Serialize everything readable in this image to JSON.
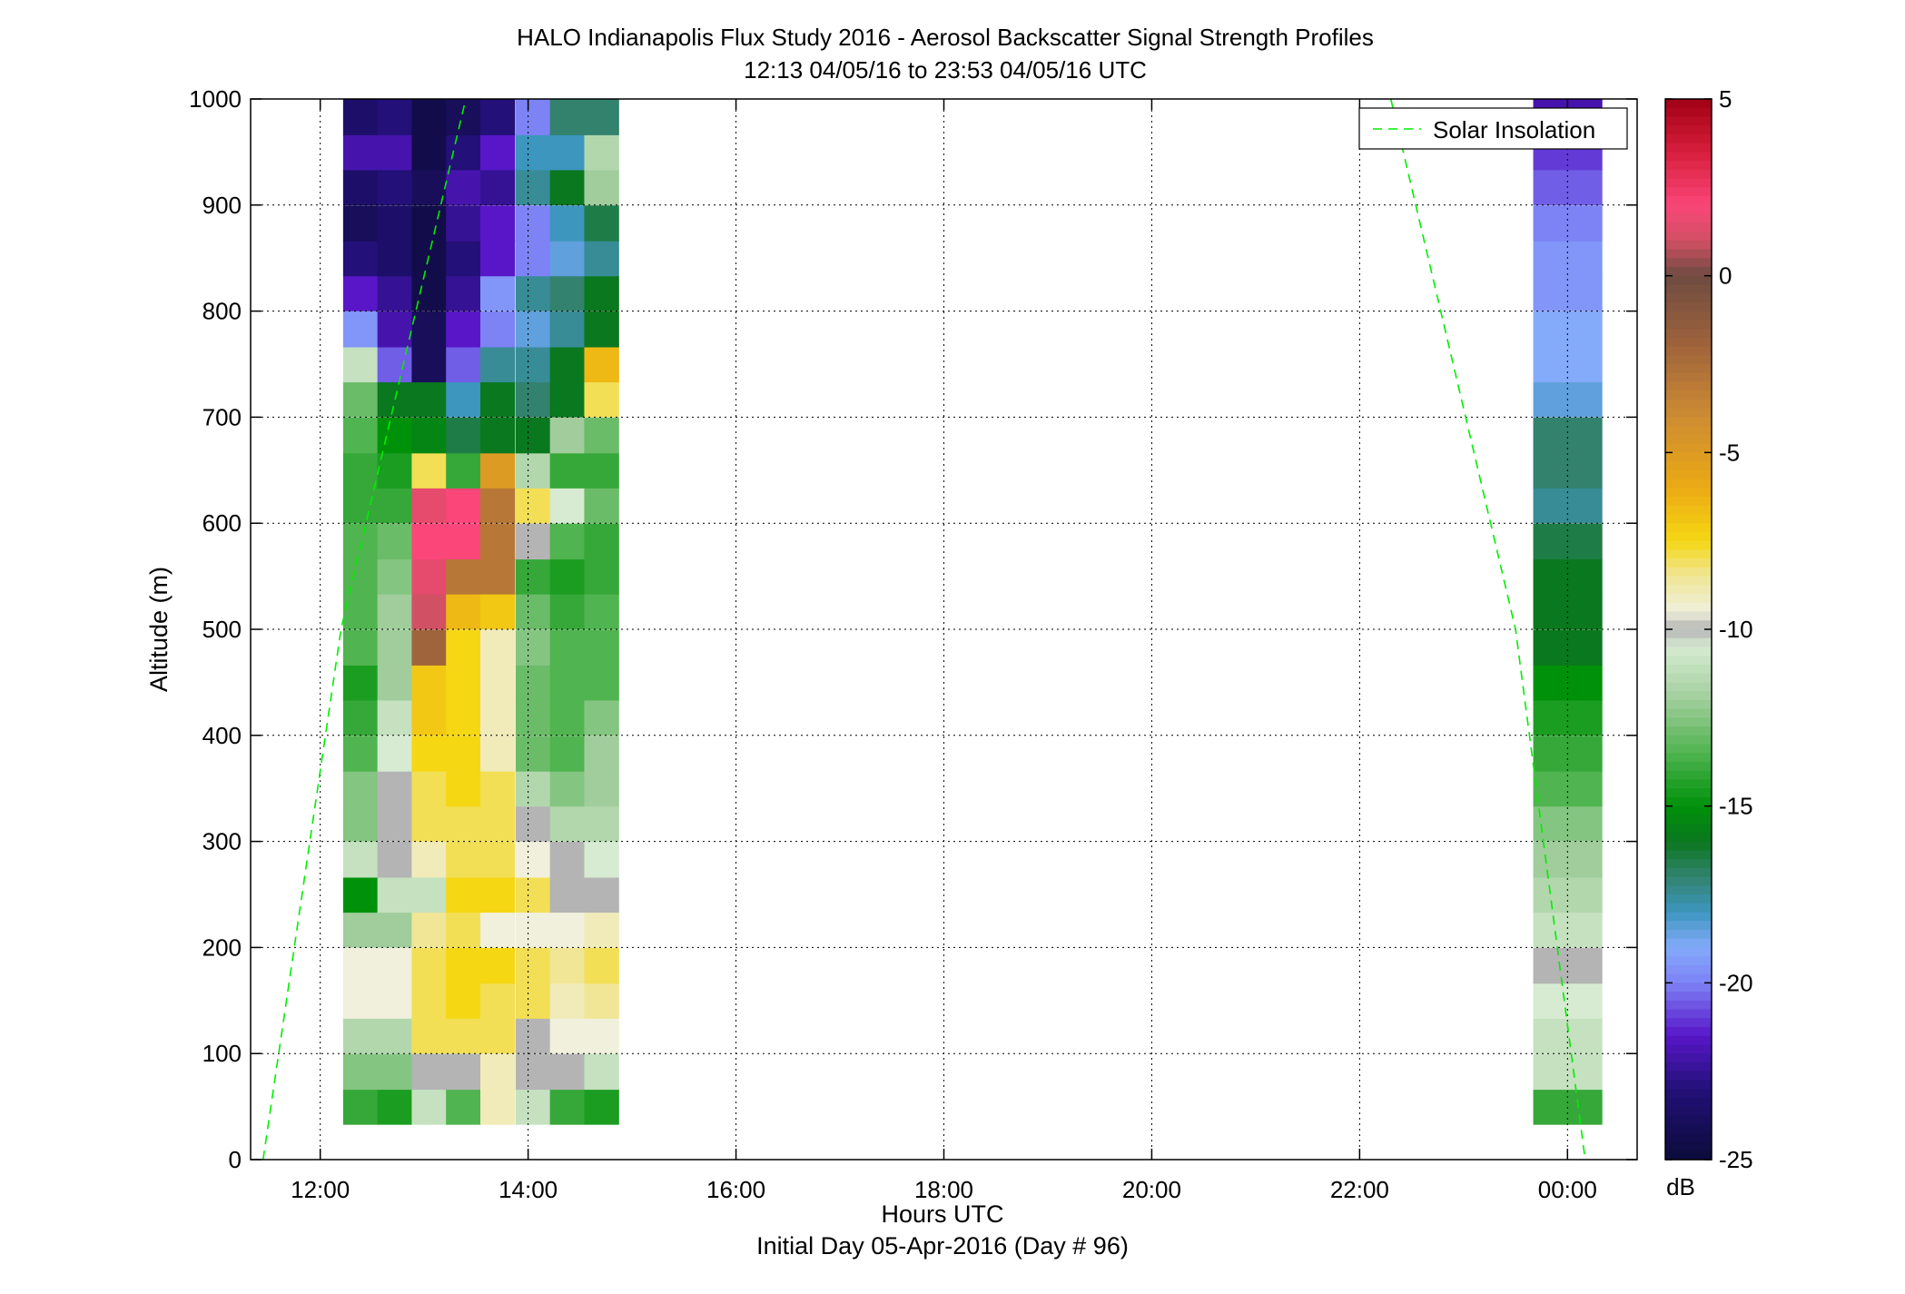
{
  "chart_data": {
    "type": "heatmap",
    "title": "HALO Indianapolis Flux Study 2016 - Aerosol Backscatter Signal Strength Profiles",
    "subtitle": "12:13 04/05/16 to 23:53 04/05/16  UTC",
    "xlabel": "Hours UTC",
    "xlabel2": "Initial Day 05-Apr-2016 (Day # 96)",
    "ylabel": "Altitude (m)",
    "colorbar_label": "dB",
    "xlim": [
      11.33,
      24.67
    ],
    "ylim": [
      0,
      1000
    ],
    "x_ticks": [
      12,
      14,
      16,
      18,
      20,
      22,
      24
    ],
    "x_tick_labels": [
      "12:00",
      "14:00",
      "16:00",
      "18:00",
      "20:00",
      "22:00",
      "00:00"
    ],
    "y_ticks": [
      0,
      100,
      200,
      300,
      400,
      500,
      600,
      700,
      800,
      900,
      1000
    ],
    "y_tick_labels": [
      "0",
      "100",
      "200",
      "300",
      "400",
      "500",
      "600",
      "700",
      "800",
      "900",
      "1000"
    ],
    "clim": [
      -25,
      5
    ],
    "colorbar_ticks": [
      5,
      0,
      -5,
      -10,
      -15,
      -20,
      -25
    ],
    "colorbar_tick_labels": [
      "5",
      "0",
      "-5",
      "-10",
      "-15",
      "-20",
      "-25"
    ],
    "grid": true,
    "legend": {
      "position": "top-right",
      "entries": [
        {
          "name": "Solar Insolation",
          "style": "dashed",
          "color": "#00ee00"
        }
      ]
    },
    "column_width_hours": 0.33,
    "altitude_bin_m": 33.3,
    "profile_altitudes_bottom_up": [
      50,
      83,
      117,
      150,
      183,
      217,
      250,
      283,
      317,
      350,
      383,
      417,
      450,
      483,
      517,
      550,
      583,
      617,
      650,
      683,
      717,
      750,
      783,
      817,
      850,
      883,
      917,
      950,
      983
    ],
    "profiles": [
      {
        "time": 12.22,
        "values": [
          -14,
          -12.5,
          -11.5,
          -9.5,
          -9.5,
          -12,
          -15,
          -11,
          -12.5,
          -12.5,
          -13.5,
          -14,
          -14.5,
          -13.5,
          -13.5,
          -13.5,
          -13.5,
          -14,
          -14,
          -13.5,
          -13,
          -11,
          -19.5,
          -21.5,
          -23,
          -24,
          -23.5,
          -22,
          -23.5
        ]
      },
      {
        "time": 12.55,
        "values": [
          -14.5,
          -12.5,
          -11.5,
          -9.5,
          -9.5,
          -12,
          -11,
          -10,
          -10,
          -10,
          -10.5,
          -11,
          -12,
          -12,
          -12,
          -12.5,
          -13,
          -14,
          -14.5,
          -15,
          -16,
          -20.5,
          -22,
          -22.5,
          -23.5,
          -23.5,
          -23,
          -22,
          -23
        ]
      },
      {
        "time": 12.88,
        "values": [
          -11,
          -10,
          -8,
          -8,
          -8,
          -8.5,
          -11,
          -9,
          -8,
          -8,
          -7.5,
          -7,
          -7,
          -2,
          1,
          1.5,
          2,
          1.5,
          -8,
          -15.5,
          -16,
          -24,
          -24,
          -24.5,
          -24.5,
          -24.5,
          -24,
          -24.5,
          -24.5
        ]
      },
      {
        "time": 13.21,
        "values": [
          -13.5,
          -10,
          -8,
          -7.5,
          -7.5,
          -8,
          -7.5,
          -8,
          -8,
          -7.5,
          -7.5,
          -7.5,
          -7.5,
          -7.5,
          -6.5,
          -3,
          2,
          2,
          -14,
          -16.5,
          -18,
          -20.5,
          -21.5,
          -22.5,
          -23,
          -22.5,
          -22,
          -23,
          -24
        ]
      },
      {
        "time": 13.54,
        "values": [
          -9,
          -9,
          -8,
          -8,
          -7.5,
          -9.5,
          -7.5,
          -8,
          -8,
          -8,
          -9,
          -9,
          -9,
          -9,
          -7,
          -3,
          -3,
          -3,
          -5,
          -16,
          -16,
          -17.5,
          -20,
          -19.5,
          -21.5,
          -21.5,
          -22.5,
          -21.5,
          -23
        ]
      },
      {
        "time": 13.88,
        "values": [
          -11,
          -10,
          -10,
          -8,
          -8,
          -9.5,
          -8,
          -9.5,
          -10,
          -11.5,
          -13,
          -13,
          -13,
          -12.5,
          -13,
          -14,
          -10,
          -8,
          -11.5,
          -16,
          -17,
          -17.5,
          -18.5,
          -17.5,
          -20,
          -20,
          -17.5,
          -18,
          -20
        ]
      },
      {
        "time": 14.21,
        "values": [
          -14,
          -10,
          -9.5,
          -9,
          -8.5,
          -9.5,
          -10,
          -10,
          -11.5,
          -12.5,
          -13.5,
          -13.5,
          -13.5,
          -13.5,
          -14,
          -14.5,
          -13.5,
          -10.5,
          -14,
          -12,
          -16,
          -16,
          -17.5,
          -17,
          -18.5,
          -18,
          -16,
          -18,
          -17
        ]
      },
      {
        "time": 14.54,
        "values": [
          -14.5,
          -11,
          -9.5,
          -8.5,
          -8,
          -9,
          -10,
          -10.5,
          -11.5,
          -12,
          -12,
          -12.5,
          -13.5,
          -13.5,
          -13.5,
          -14,
          -14,
          -13,
          -14,
          -13,
          -8,
          -6.5,
          -16,
          -16,
          -17.5,
          -16.5,
          -12,
          -11.5,
          -17
        ]
      },
      {
        "time": 24.0,
        "values": [
          -14,
          -11,
          -11,
          -10.5,
          -10,
          -11,
          -11.5,
          -12,
          -12.5,
          -13.5,
          -14,
          -14.5,
          -15,
          -16,
          -16,
          -16,
          -16.5,
          -17.5,
          -17,
          -17,
          -18.5,
          -19,
          -19,
          -19.5,
          -19.5,
          -20,
          -20.5,
          -21,
          -22
        ]
      },
      {
        "time": 23.67,
        "values": [
          -14,
          -11,
          -11,
          -10.5,
          -10,
          -11,
          -11.5,
          -12,
          -12.5,
          -13.5,
          -14,
          -14.5,
          -15,
          -16,
          -16,
          -16,
          -16.5,
          -17.5,
          -17,
          -17,
          -18.5,
          -19,
          -19,
          -19.5,
          -19.5,
          -20,
          -20.5,
          -21,
          -22
        ]
      }
    ],
    "solar_insolation_curve": {
      "ascending": [
        [
          11.45,
          0
        ],
        [
          12.2,
          500
        ],
        [
          13.4,
          1000
        ]
      ],
      "descending": [
        [
          22.3,
          1000
        ],
        [
          23.5,
          500
        ],
        [
          24.17,
          0
        ]
      ]
    }
  }
}
